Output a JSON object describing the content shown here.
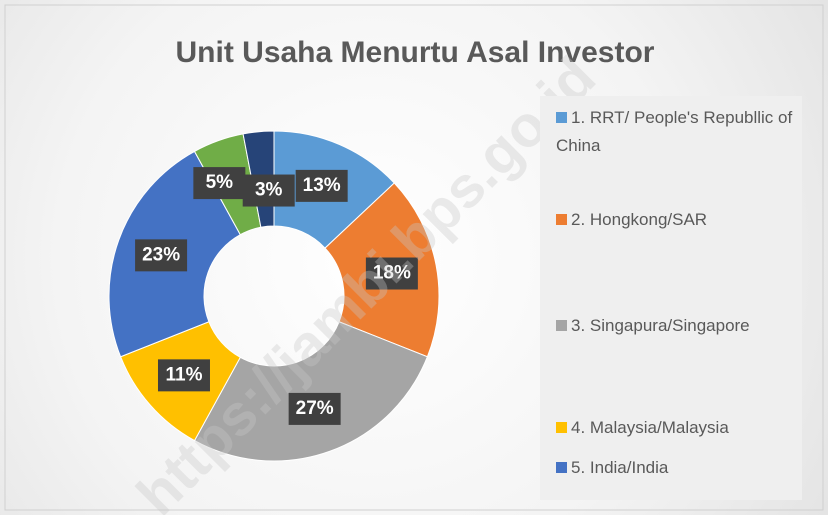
{
  "chart_data": {
    "type": "donut",
    "title": "Unit Usaha Menurtu Asal Investor",
    "categories": [
      "1. RRT/ People's Republlic of China",
      "2. Hongkong/SAR",
      "3. Singapura/Singapore",
      "4. Malaysia/Malaysia",
      "5. India/India",
      null,
      null
    ],
    "values": [
      13,
      18,
      27,
      11,
      23,
      5,
      3
    ],
    "value_labels": [
      "13%",
      "18%",
      "27%",
      "11%",
      "23%",
      "5%",
      "3%"
    ],
    "colors": [
      "#5b9bd5",
      "#ed7d31",
      "#a5a5a5",
      "#ffc000",
      "#4472c4",
      "#70ad47",
      "#264478"
    ],
    "legend": "right"
  },
  "watermark": "https://jambi.bps.go.id"
}
